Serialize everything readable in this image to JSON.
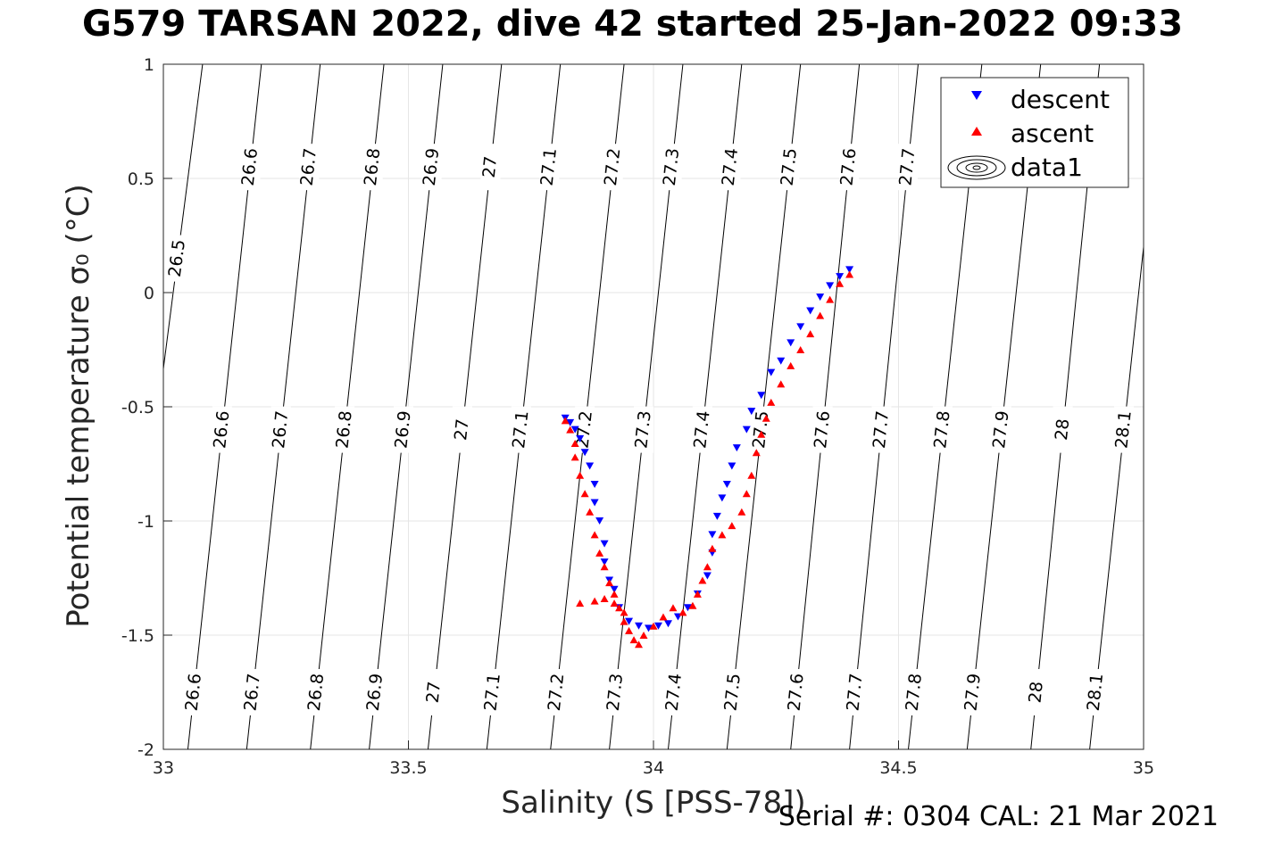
{
  "title": "G579 TARSAN 2022, dive 42 started 25-Jan-2022 09:33",
  "footer": "Serial #: 0304  CAL: 21 Mar 2021",
  "chart_data": {
    "type": "scatter",
    "xlabel": "Salinity (S [PSS-78])",
    "ylabel": "Potential temperature σ₀ (°C)",
    "xlim": [
      33,
      35
    ],
    "ylim": [
      -2,
      1
    ],
    "xticks": [
      33,
      33.5,
      34,
      34.5,
      35
    ],
    "xtick_labels": [
      "33",
      "33.5",
      "34",
      "34.5",
      "35"
    ],
    "yticks": [
      -2,
      -1.5,
      -1,
      -0.5,
      0,
      0.5,
      1
    ],
    "ytick_labels": [
      "-2",
      "-1.5",
      "-1",
      "-0.5",
      "0",
      "0.5",
      "1"
    ],
    "grid": true,
    "legend_position": "top-right",
    "legend": [
      "descent",
      "ascent",
      "data1"
    ],
    "contours": [
      {
        "label": "26.5",
        "x_bottom": 32.9,
        "x_top": 33.08,
        "labels_at": [
          0.15
        ]
      },
      {
        "label": "26.6",
        "x_bottom": 33.05,
        "x_top": 33.2,
        "labels_at": [
          -1.75,
          -0.6,
          0.55
        ]
      },
      {
        "label": "26.7",
        "x_bottom": 33.17,
        "x_top": 33.32,
        "labels_at": [
          -1.75,
          -0.6,
          0.55
        ]
      },
      {
        "label": "26.8",
        "x_bottom": 33.3,
        "x_top": 33.45,
        "labels_at": [
          -1.75,
          -0.6,
          0.55
        ]
      },
      {
        "label": "26.9",
        "x_bottom": 33.42,
        "x_top": 33.57,
        "labels_at": [
          -1.75,
          -0.6,
          0.55
        ]
      },
      {
        "label": "27",
        "x_bottom": 33.54,
        "x_top": 33.69,
        "labels_at": [
          -1.75,
          -0.6,
          0.55
        ]
      },
      {
        "label": "27.1",
        "x_bottom": 33.66,
        "x_top": 33.81,
        "labels_at": [
          -1.75,
          -0.6,
          0.55
        ]
      },
      {
        "label": "27.2",
        "x_bottom": 33.79,
        "x_top": 33.94,
        "labels_at": [
          -1.75,
          -0.6,
          0.55
        ]
      },
      {
        "label": "27.3",
        "x_bottom": 33.91,
        "x_top": 34.06,
        "labels_at": [
          -1.75,
          -0.6,
          0.55
        ]
      },
      {
        "label": "27.4",
        "x_bottom": 34.03,
        "x_top": 34.18,
        "labels_at": [
          -1.75,
          -0.6,
          0.55
        ]
      },
      {
        "label": "27.5",
        "x_bottom": 34.15,
        "x_top": 34.3,
        "labels_at": [
          -1.75,
          -0.6,
          0.55
        ]
      },
      {
        "label": "27.6",
        "x_bottom": 34.28,
        "x_top": 34.42,
        "labels_at": [
          -1.75,
          -0.6,
          0.55
        ]
      },
      {
        "label": "27.7",
        "x_bottom": 34.4,
        "x_top": 34.54,
        "labels_at": [
          -1.75,
          -0.6,
          0.55
        ]
      },
      {
        "label": "27.8",
        "x_bottom": 34.52,
        "x_top": 34.67,
        "labels_at": [
          -1.75,
          -0.6
        ]
      },
      {
        "label": "27.9",
        "x_bottom": 34.64,
        "x_top": 34.79,
        "labels_at": [
          -1.75,
          -0.6
        ]
      },
      {
        "label": "28",
        "x_bottom": 34.77,
        "x_top": 34.91,
        "labels_at": [
          -1.75,
          -0.6
        ]
      },
      {
        "label": "28.1",
        "x_bottom": 34.89,
        "x_top": 35.04,
        "labels_at": [
          -1.75,
          -0.6
        ]
      }
    ],
    "series": [
      {
        "name": "descent",
        "color": "#0000ff",
        "marker": "triangle-down",
        "x": [
          33.82,
          33.83,
          33.84,
          33.85,
          33.86,
          33.87,
          33.88,
          33.88,
          33.89,
          33.9,
          33.9,
          33.91,
          33.92,
          33.93,
          33.95,
          33.97,
          33.99,
          34.01,
          34.03,
          34.05,
          34.07,
          34.09,
          34.11,
          34.12,
          34.12,
          34.13,
          34.14,
          34.15,
          34.16,
          34.17,
          34.19,
          34.2,
          34.22,
          34.24,
          34.26,
          34.28,
          34.3,
          34.32,
          34.34,
          34.36,
          34.38,
          34.4
        ],
        "y": [
          -0.55,
          -0.57,
          -0.6,
          -0.64,
          -0.7,
          -0.76,
          -0.84,
          -0.92,
          -1.0,
          -1.1,
          -1.18,
          -1.26,
          -1.3,
          -1.38,
          -1.44,
          -1.46,
          -1.47,
          -1.46,
          -1.45,
          -1.42,
          -1.38,
          -1.32,
          -1.24,
          -1.14,
          -1.06,
          -0.98,
          -0.9,
          -0.84,
          -0.76,
          -0.68,
          -0.6,
          -0.52,
          -0.45,
          -0.35,
          -0.3,
          -0.22,
          -0.15,
          -0.08,
          -0.02,
          0.03,
          0.07,
          0.1
        ]
      },
      {
        "name": "ascent",
        "color": "#ff0000",
        "marker": "triangle-up",
        "x": [
          33.82,
          33.83,
          33.84,
          33.84,
          33.85,
          33.86,
          33.87,
          33.88,
          33.89,
          33.9,
          33.91,
          33.92,
          33.93,
          33.94,
          33.95,
          33.96,
          33.97,
          33.98,
          34.0,
          34.02,
          34.04,
          34.06,
          34.08,
          34.09,
          34.1,
          34.11,
          34.12,
          34.14,
          34.16,
          34.18,
          34.19,
          34.2,
          34.21,
          34.22,
          34.23,
          34.24,
          34.26,
          34.28,
          34.3,
          34.32,
          34.34,
          34.36,
          34.38,
          34.4,
          33.85,
          33.88,
          33.9,
          33.92,
          33.94
        ],
        "y": [
          -0.56,
          -0.6,
          -0.66,
          -0.72,
          -0.8,
          -0.88,
          -0.96,
          -1.06,
          -1.14,
          -1.2,
          -1.27,
          -1.32,
          -1.38,
          -1.44,
          -1.48,
          -1.52,
          -1.54,
          -1.5,
          -1.46,
          -1.42,
          -1.38,
          -1.4,
          -1.37,
          -1.32,
          -1.26,
          -1.2,
          -1.12,
          -1.06,
          -1.02,
          -0.96,
          -0.88,
          -0.8,
          -0.7,
          -0.62,
          -0.55,
          -0.48,
          -0.4,
          -0.32,
          -0.25,
          -0.18,
          -0.1,
          -0.03,
          0.04,
          0.08,
          -1.36,
          -1.35,
          -1.34,
          -1.36,
          -1.4
        ]
      }
    ]
  }
}
